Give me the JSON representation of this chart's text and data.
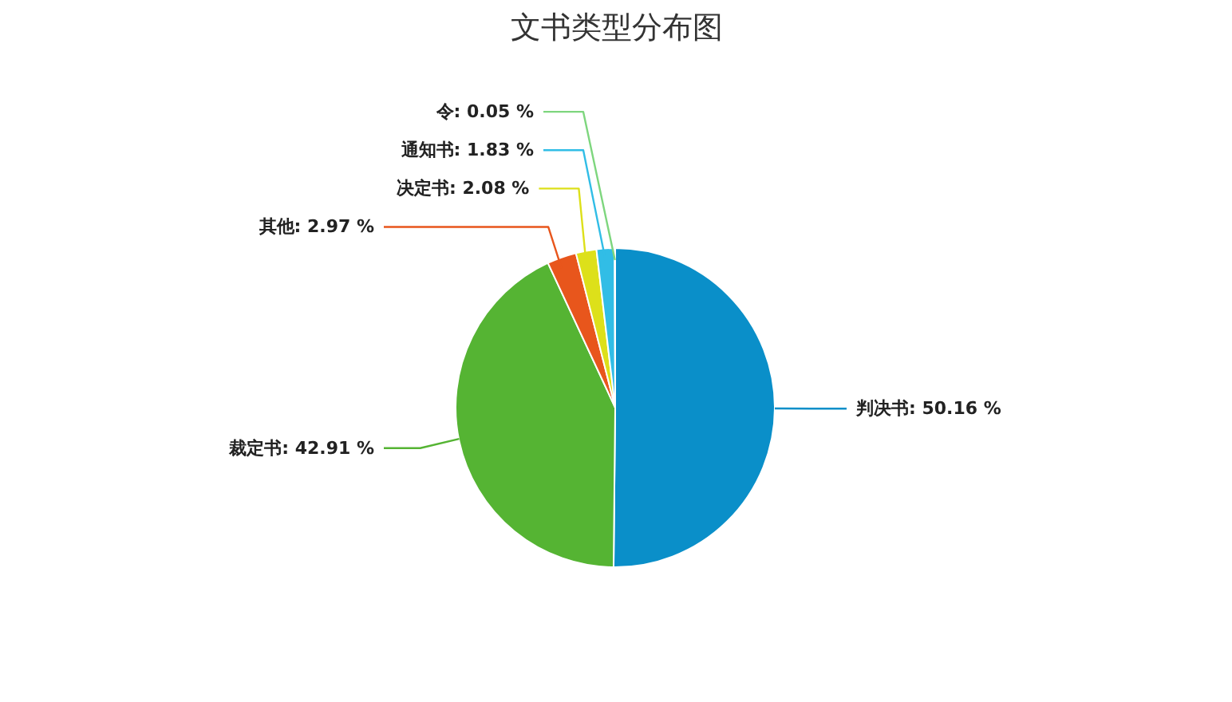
{
  "chart_data": {
    "type": "pie",
    "title": "文书类型分布图",
    "categories": [
      "判决书",
      "裁定书",
      "其他",
      "决定书",
      "通知书",
      "令"
    ],
    "values": [
      50.16,
      42.91,
      2.97,
      2.08,
      1.83,
      0.05
    ],
    "colors": [
      "#0a8fc9",
      "#55b433",
      "#e8561c",
      "#dde01a",
      "#31bde6",
      "#7ed67e"
    ],
    "value_labels": [
      "50.16 %",
      "42.91 %",
      "2.97 %",
      "2.08 %",
      "1.83 %",
      "0.05 %"
    ]
  }
}
